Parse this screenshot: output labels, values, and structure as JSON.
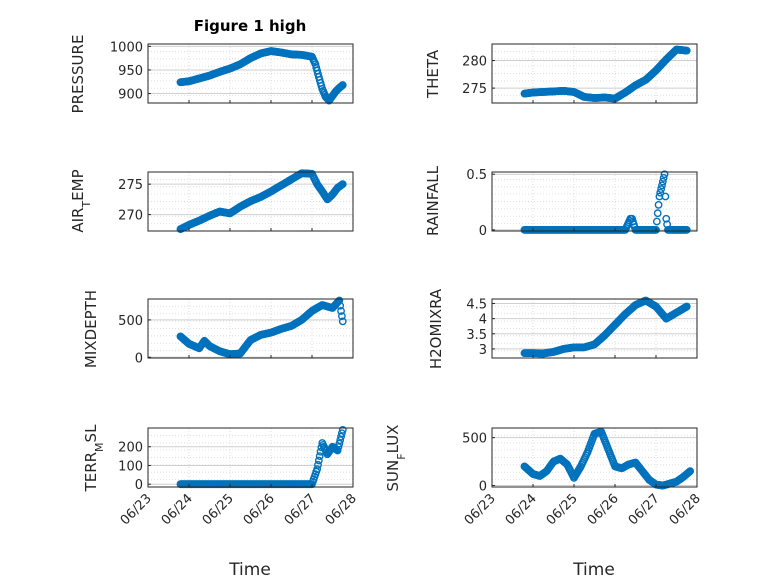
{
  "chart_data": [
    {
      "type": "scatter",
      "title": "Figure 1 high",
      "ylabel": "PRESSURE",
      "xlim": [
        "06/23",
        "06/28"
      ],
      "ylim": [
        880,
        1005
      ],
      "yticks": [
        900,
        950,
        1000
      ],
      "xticks": [],
      "grid": true,
      "x": [
        "06/23 19:00",
        "06/24 00:00",
        "06/24 06:00",
        "06/24 12:00",
        "06/24 18:00",
        "06/25 00:00",
        "06/25 06:00",
        "06/25 12:00",
        "06/25 18:00",
        "06/26 00:00",
        "06/26 06:00",
        "06/26 12:00",
        "06/26 18:00",
        "06/27 00:00",
        "06/27 02:00",
        "06/27 04:00",
        "06/27 06:00",
        "06/27 08:00",
        "06/27 10:00",
        "06/27 12:00",
        "06/27 14:00",
        "06/27 16:00",
        "06/27 18:00"
      ],
      "y": [
        924,
        926,
        932,
        938,
        946,
        953,
        962,
        975,
        985,
        990,
        987,
        983,
        982,
        978,
        962,
        935,
        910,
        893,
        885,
        895,
        905,
        912,
        918
      ]
    },
    {
      "type": "scatter",
      "title": "",
      "ylabel": "THETA",
      "xlim": [
        "06/23",
        "06/28"
      ],
      "ylim": [
        272.3,
        283
      ],
      "yticks": [
        275,
        280
      ],
      "xticks": [],
      "grid": true,
      "x": [
        "06/23 19:00",
        "06/24 00:00",
        "06/24 06:00",
        "06/24 12:00",
        "06/24 18:00",
        "06/25 00:00",
        "06/25 06:00",
        "06/25 12:00",
        "06/25 18:00",
        "06/26 00:00",
        "06/26 06:00",
        "06/26 12:00",
        "06/26 18:00",
        "06/27 00:00",
        "06/27 06:00",
        "06/27 12:00",
        "06/27 18:00"
      ],
      "y": [
        274.0,
        274.2,
        274.3,
        274.4,
        274.5,
        274.3,
        273.4,
        273.2,
        273.3,
        273.1,
        274.2,
        275.5,
        276.5,
        278.2,
        280.2,
        282.0,
        281.8
      ]
    },
    {
      "type": "scatter",
      "title": "",
      "ylabel": "AIR_TEMP",
      "xlim": [
        "06/23",
        "06/28"
      ],
      "ylim": [
        267.3,
        277
      ],
      "yticks": [
        270,
        275
      ],
      "xticks": [],
      "grid": true,
      "x": [
        "06/23 19:00",
        "06/24 00:00",
        "06/24 06:00",
        "06/24 12:00",
        "06/24 18:00",
        "06/25 00:00",
        "06/25 06:00",
        "06/25 12:00",
        "06/25 18:00",
        "06/26 00:00",
        "06/26 06:00",
        "06/26 12:00",
        "06/26 18:00",
        "06/27 00:00",
        "06/27 03:00",
        "06/27 06:00",
        "06/27 09:00",
        "06/27 12:00",
        "06/27 15:00",
        "06/27 18:00"
      ],
      "y": [
        267.6,
        268.3,
        269.0,
        269.8,
        270.5,
        270.2,
        271.3,
        272.2,
        272.9,
        273.8,
        274.8,
        275.8,
        276.8,
        276.7,
        275.0,
        273.8,
        272.5,
        273.3,
        274.4,
        275.0
      ]
    },
    {
      "type": "scatter",
      "title": "",
      "ylabel": "RAINFALL",
      "xlim": [
        "06/23",
        "06/28"
      ],
      "ylim": [
        -0.01,
        0.52
      ],
      "yticks": [
        0,
        0.5
      ],
      "xticks": [],
      "grid": true,
      "x": [
        "06/23 19:00",
        "06/24 00:00",
        "06/24 06:00",
        "06/24 12:00",
        "06/24 18:00",
        "06/25 00:00",
        "06/25 06:00",
        "06/25 12:00",
        "06/25 18:00",
        "06/26 00:00",
        "06/26 06:00",
        "06/26 12:00",
        "06/26 18:00",
        "06/26 09:00",
        "06/26 10:00",
        "06/27 00:00",
        "06/27 02:00",
        "06/27 05:00",
        "06/27 06:00",
        "06/27 07:00",
        "06/27 12:00",
        "06/27 18:00"
      ],
      "y": [
        0,
        0,
        0,
        0,
        0,
        0,
        0,
        0,
        0,
        0,
        0,
        0,
        0,
        0.1,
        0.1,
        0,
        0.3,
        0.5,
        0.1,
        0,
        0,
        0
      ]
    },
    {
      "type": "scatter",
      "title": "",
      "ylabel": "MIXDEPTH",
      "xlim": [
        "06/23",
        "06/28"
      ],
      "ylim": [
        -10,
        780
      ],
      "yticks": [
        0,
        500
      ],
      "xticks": [],
      "grid": true,
      "x": [
        "06/23 19:00",
        "06/24 00:00",
        "06/24 06:00",
        "06/24 09:00",
        "06/24 12:00",
        "06/24 18:00",
        "06/25 00:00",
        "06/25 06:00",
        "06/25 12:00",
        "06/25 18:00",
        "06/26 00:00",
        "06/26 06:00",
        "06/26 12:00",
        "06/26 18:00",
        "06/27 00:00",
        "06/27 06:00",
        "06/27 12:00",
        "06/27 16:00",
        "06/27 18:00"
      ],
      "y": [
        280,
        180,
        120,
        220,
        150,
        80,
        40,
        50,
        230,
        300,
        330,
        380,
        420,
        500,
        620,
        700,
        660,
        760,
        480
      ]
    },
    {
      "type": "scatter",
      "title": "",
      "ylabel": "H2OMIXRA",
      "xlim": [
        "06/23",
        "06/28"
      ],
      "ylim": [
        2.7,
        4.65
      ],
      "yticks": [
        3,
        3.5,
        4,
        4.5
      ],
      "xticks": [],
      "grid": true,
      "x": [
        "06/23 19:00",
        "06/24 00:00",
        "06/24 06:00",
        "06/24 12:00",
        "06/24 18:00",
        "06/25 00:00",
        "06/25 06:00",
        "06/25 12:00",
        "06/25 18:00",
        "06/26 00:00",
        "06/26 06:00",
        "06/26 12:00",
        "06/26 18:00",
        "06/27 00:00",
        "06/27 06:00",
        "06/27 12:00",
        "06/27 18:00"
      ],
      "y": [
        2.86,
        2.86,
        2.85,
        2.9,
        3.0,
        3.05,
        3.05,
        3.15,
        3.45,
        3.8,
        4.15,
        4.45,
        4.6,
        4.4,
        4.0,
        4.2,
        4.4
      ]
    },
    {
      "type": "scatter",
      "title": "",
      "ylabel": "TERR_MSL",
      "xlim": [
        "06/23",
        "06/28"
      ],
      "ylim": [
        -15,
        300
      ],
      "yticks": [
        0,
        100,
        200
      ],
      "xticks": [
        "06/23",
        "06/24",
        "06/25",
        "06/26",
        "06/27",
        "06/28"
      ],
      "xlabel": "Time",
      "grid": true,
      "x": [
        "06/23 19:00",
        "06/24 00:00",
        "06/24 12:00",
        "06/25 00:00",
        "06/25 12:00",
        "06/26 00:00",
        "06/26 12:00",
        "06/27 00:00",
        "06/27 03:00",
        "06/27 06:00",
        "06/27 09:00",
        "06/27 12:00",
        "06/27 15:00",
        "06/27 18:00"
      ],
      "y": [
        0,
        0,
        0,
        0,
        0,
        0,
        0,
        0,
        80,
        220,
        160,
        200,
        180,
        290
      ]
    },
    {
      "type": "scatter",
      "title": "",
      "ylabel": "SUN_FLUX",
      "xlim": [
        "06/23",
        "06/28"
      ],
      "ylim": [
        -15,
        600
      ],
      "yticks": [
        0,
        500
      ],
      "xticks": [
        "06/23",
        "06/24",
        "06/25",
        "06/26",
        "06/27",
        "06/28"
      ],
      "xlabel": "Time",
      "grid": true,
      "x": [
        "06/23 19:00",
        "06/24 00:00",
        "06/24 04:00",
        "06/24 08:00",
        "06/24 12:00",
        "06/24 16:00",
        "06/24 20:00",
        "06/25 00:00",
        "06/25 04:00",
        "06/25 08:00",
        "06/25 12:00",
        "06/25 16:00",
        "06/25 20:00",
        "06/26 00:00",
        "06/26 04:00",
        "06/26 08:00",
        "06/26 12:00",
        "06/26 16:00",
        "06/26 20:00",
        "06/27 00:00",
        "06/27 04:00",
        "06/27 08:00",
        "06/27 12:00",
        "06/27 16:00",
        "06/27 20:00"
      ],
      "y": [
        200,
        120,
        100,
        150,
        250,
        280,
        220,
        80,
        200,
        350,
        540,
        560,
        380,
        200,
        180,
        220,
        240,
        150,
        60,
        10,
        0,
        20,
        40,
        90,
        150
      ]
    }
  ],
  "colors": {
    "marker": "#0072bd",
    "axis": "#262626",
    "grid": "#dfdfdf"
  }
}
